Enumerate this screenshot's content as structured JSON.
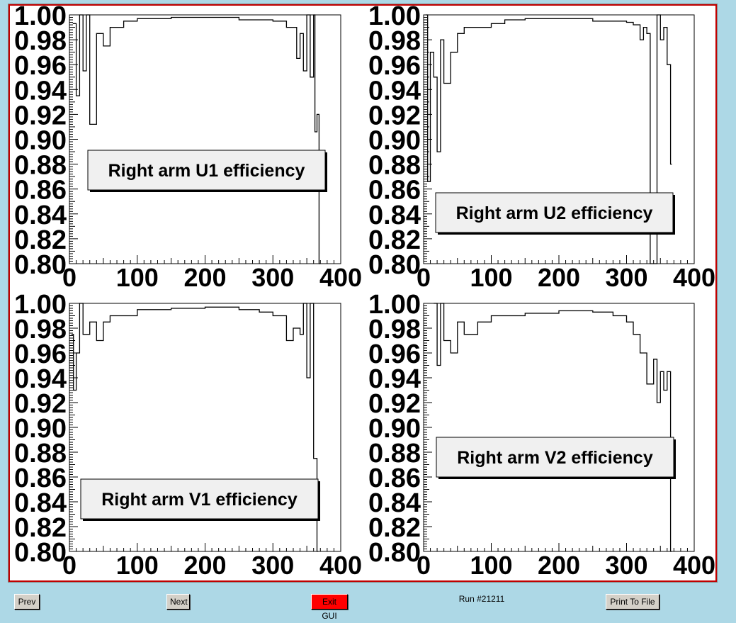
{
  "colors": {
    "background": "#add8e6",
    "frame_border": "#c00000",
    "exit_button": "#ff0000",
    "line": "#000000"
  },
  "toolbar": {
    "prev_label": "Prev",
    "next_label": "Next",
    "exit_label": "Exit GUI",
    "run_label": "Run #21211",
    "print_label": "Print To File"
  },
  "chart_data": [
    {
      "type": "line",
      "legend": "Right arm U1 efficiency",
      "xlim": [
        0,
        400
      ],
      "ylim": [
        0.8,
        1.0
      ],
      "xticks": [
        "0",
        "100",
        "200",
        "300",
        "400"
      ],
      "yticks": [
        "0.80",
        "0.82",
        "0.84",
        "0.86",
        "0.88",
        "0.90",
        "0.92",
        "0.94",
        "0.96",
        "0.98",
        "1.00"
      ],
      "series": [
        {
          "x": [
            5,
            10,
            15,
            20,
            25,
            30,
            40,
            50,
            60,
            80,
            100,
            120,
            150,
            200,
            250,
            280,
            300,
            320,
            335,
            340,
            345,
            350,
            355,
            360,
            362,
            365,
            368
          ],
          "y": [
            0.993,
            0.935,
            1.0,
            0.955,
            1.0,
            0.912,
            0.985,
            0.975,
            0.99,
            0.995,
            0.997,
            0.997,
            0.998,
            0.998,
            0.996,
            0.996,
            0.995,
            0.99,
            0.965,
            0.985,
            0.955,
            1.0,
            0.95,
            1.0,
            0.906,
            0.92,
            0.8
          ]
        }
      ]
    },
    {
      "type": "line",
      "legend": "Right arm U2 efficiency",
      "xlim": [
        0,
        400
      ],
      "ylim": [
        0.8,
        1.0
      ],
      "xticks": [
        "0",
        "100",
        "200",
        "300",
        "400"
      ],
      "yticks": [
        "0.80",
        "0.82",
        "0.84",
        "0.86",
        "0.88",
        "0.90",
        "0.92",
        "0.94",
        "0.96",
        "0.98",
        "1.00"
      ],
      "series": [
        {
          "x": [
            3,
            6,
            10,
            15,
            20,
            25,
            30,
            40,
            50,
            60,
            80,
            100,
            120,
            150,
            200,
            250,
            280,
            300,
            310,
            320,
            325,
            330,
            335,
            340,
            345,
            350,
            355,
            360,
            365
          ],
          "y": [
            1.0,
            0.866,
            0.97,
            0.95,
            0.89,
            0.98,
            0.945,
            0.97,
            0.985,
            0.99,
            0.99,
            0.993,
            0.996,
            0.997,
            0.997,
            0.995,
            0.995,
            0.994,
            0.992,
            0.98,
            0.99,
            0.985,
            0.8,
            0.8,
            1.0,
            0.98,
            0.99,
            0.96,
            0.88
          ]
        }
      ]
    },
    {
      "type": "line",
      "legend": "Right arm V1 efficiency",
      "xlim": [
        0,
        400
      ],
      "ylim": [
        0.8,
        1.0
      ],
      "xticks": [
        "0",
        "100",
        "200",
        "300",
        "400"
      ],
      "yticks": [
        "0.80",
        "0.82",
        "0.84",
        "0.86",
        "0.88",
        "0.90",
        "0.92",
        "0.94",
        "0.96",
        "0.98",
        "1.00"
      ],
      "series": [
        {
          "x": [
            3,
            6,
            10,
            15,
            20,
            30,
            40,
            50,
            60,
            80,
            100,
            120,
            150,
            200,
            250,
            280,
            300,
            320,
            330,
            340,
            345,
            350,
            355,
            360,
            365
          ],
          "y": [
            0.975,
            0.93,
            0.96,
            1.0,
            0.975,
            0.985,
            0.97,
            0.985,
            0.99,
            0.99,
            0.995,
            0.995,
            0.996,
            0.997,
            0.995,
            0.993,
            0.99,
            0.97,
            0.98,
            0.975,
            1.0,
            0.94,
            1.0,
            0.875,
            0.8
          ]
        }
      ]
    },
    {
      "type": "line",
      "legend": "Right arm V2 efficiency",
      "xlim": [
        0,
        400
      ],
      "ylim": [
        0.8,
        1.0
      ],
      "xticks": [
        "0",
        "100",
        "200",
        "300",
        "400"
      ],
      "yticks": [
        "0.80",
        "0.82",
        "0.84",
        "0.86",
        "0.88",
        "0.90",
        "0.92",
        "0.94",
        "0.96",
        "0.98",
        "1.00"
      ],
      "series": [
        {
          "x": [
            15,
            20,
            25,
            30,
            40,
            50,
            60,
            80,
            100,
            120,
            150,
            200,
            250,
            280,
            300,
            310,
            320,
            330,
            340,
            345,
            350,
            355,
            360,
            365
          ],
          "y": [
            1.0,
            0.95,
            1.0,
            0.97,
            0.96,
            0.985,
            0.975,
            0.985,
            0.99,
            0.99,
            0.992,
            0.994,
            0.993,
            0.99,
            0.985,
            0.975,
            0.96,
            0.935,
            0.955,
            0.92,
            0.945,
            0.93,
            0.945,
            0.8
          ]
        }
      ]
    }
  ]
}
